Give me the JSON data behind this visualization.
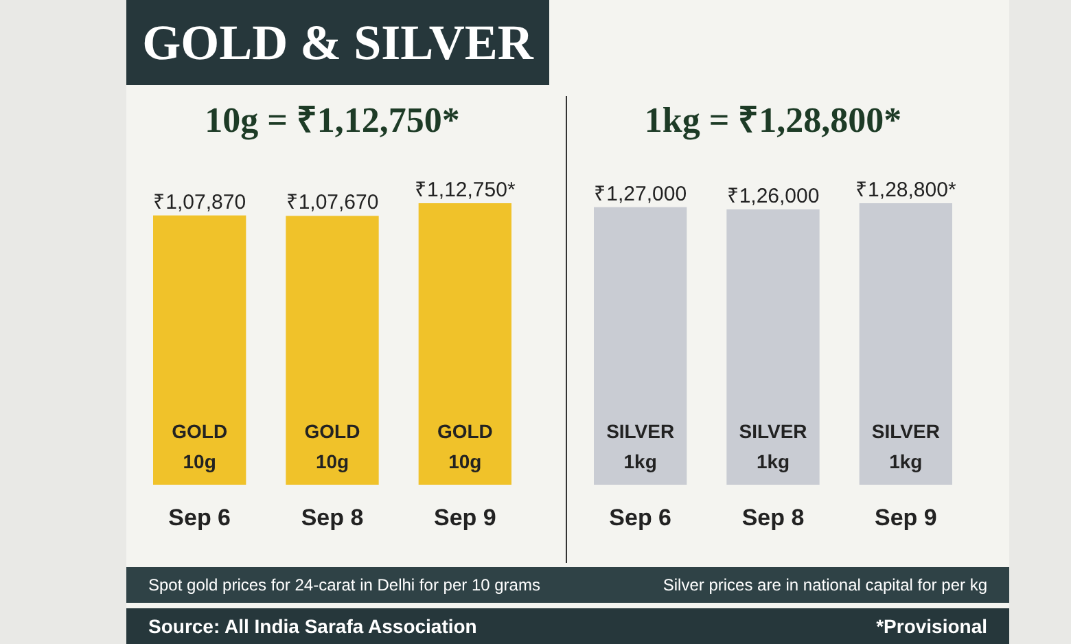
{
  "chart_data": [
    {
      "type": "bar",
      "title": "GOLD & SILVER",
      "subtitle": "10g = ₹1,12,750*",
      "categories": [
        "Sep 6",
        "Sep 8",
        "Sep 9"
      ],
      "values": [
        107870,
        107670,
        112750
      ],
      "color": "#f0c22a",
      "value_labels": [
        "₹1,07,870",
        "₹1,07,670",
        "₹1,12,750*"
      ],
      "tick_labels": "x",
      "annotations": [
        "GOLD",
        "10g",
        "GOLD",
        "10g",
        "GOLD",
        "10g",
        "Spot gold prices for 24-carat in Delhi for per 10 grams",
        "Source: All India Sarafa Association"
      ]
    },
    {
      "type": "bar",
      "subtitle": "1kg = ₹1,28,800*",
      "categories": [
        "Sep 6",
        "Sep 8",
        "Sep 9"
      ],
      "values": [
        127000,
        126000,
        128800
      ],
      "color": "#c9ccd3",
      "value_labels": [
        "₹1,27,000",
        "₹1,26,000",
        "₹1,28,800*"
      ],
      "tick_labels": "x",
      "annotations": [
        "SILVER",
        "1kg",
        "SILVER",
        "1kg",
        "SILVER",
        "1kg",
        "Silver prices are in national capital for per kg",
        "*Provisional"
      ]
    }
  ]
}
